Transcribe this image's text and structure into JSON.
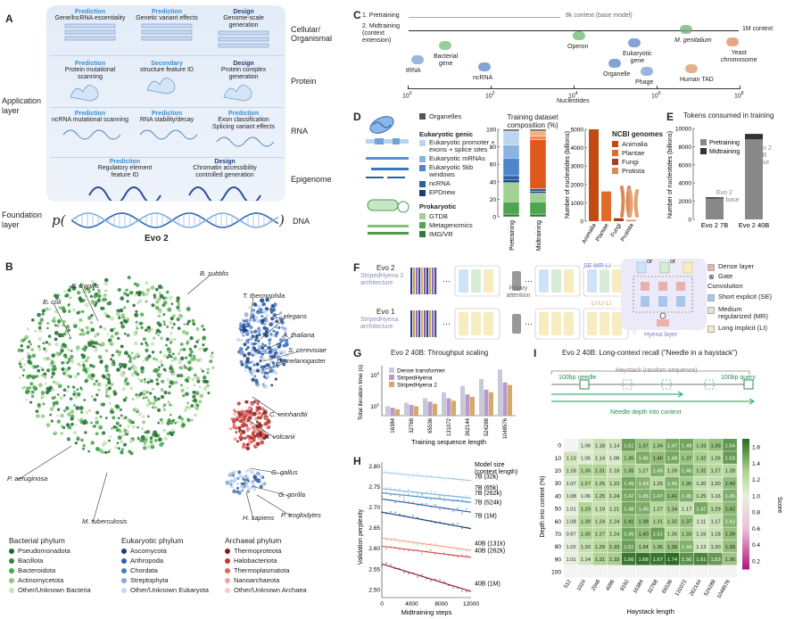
{
  "panelA": {
    "letter": "A",
    "rows": [
      {
        "label": "Cellular/\nOrganismal",
        "cards": [
          {
            "kind": "Prediction",
            "text": "Gene/lncRNA essentiality"
          },
          {
            "kind": "Prediction",
            "text": "Genetic variant effects"
          },
          {
            "kind": "Design",
            "text": "Genome-scale\ngeneration"
          }
        ]
      },
      {
        "label": "Protein",
        "cards": [
          {
            "kind": "Prediction",
            "text": "Protein mutational\nscanning"
          },
          {
            "kind": "Secondary",
            "text": "structure feature ID"
          },
          {
            "kind": "Design",
            "text": "Protein complex\ngeneration"
          }
        ]
      },
      {
        "label": "RNA",
        "cards": [
          {
            "kind": "Prediction",
            "text": "ncRNA mutational scanning"
          },
          {
            "kind": "Prediction",
            "text": "RNA stability/decay"
          },
          {
            "kind": "Prediction",
            "text": "Exon classification\nSplicing variant effects"
          }
        ]
      },
      {
        "label": "Epigenome",
        "cards": [
          {
            "kind": "Prediction",
            "text": "Regulatory element\nfeature ID"
          },
          {
            "kind": "Design",
            "text": "Chromatin accessibility\ncontrolled generation"
          }
        ]
      }
    ],
    "application_layer": "Application\nlayer",
    "foundation_layer": "Foundation\nlayer",
    "p_symbol": "p(",
    "p_close": ")",
    "dna_label": "DNA",
    "model_name": "Evo 2"
  },
  "panelB": {
    "letter": "B",
    "species": [
      "B. subtilis",
      "B. fragilis",
      "E. coli",
      "T. thermophila",
      "C. elegans",
      "A. thaliana",
      "S. cerevisiae",
      "D. melanogaster",
      "C. reinhardtii",
      "H. volcanii",
      "G. gallus",
      "G. gorilla",
      "H. sapiens",
      "P. troglodytes",
      "P. aeruginosa",
      "M. tuberculosis"
    ],
    "legend": [
      {
        "title": "Bacterial phylum",
        "items": [
          {
            "name": "Pseudomonadota",
            "color": "#1e6b2e"
          },
          {
            "name": "Bacillota",
            "color": "#2f8a3c"
          },
          {
            "name": "Bacteroidota",
            "color": "#4aa64f"
          },
          {
            "name": "Actinomycetota",
            "color": "#8cc97c"
          },
          {
            "name": "Other/Unknown Bacteria",
            "color": "#c6e3b9"
          }
        ]
      },
      {
        "title": "Eukaryotic phylum",
        "items": [
          {
            "name": "Ascomycota",
            "color": "#1a3f7a"
          },
          {
            "name": "Arthropoda",
            "color": "#2d5fa8"
          },
          {
            "name": "Chordata",
            "color": "#4a7fc5"
          },
          {
            "name": "Streptophyta",
            "color": "#86a9d9"
          },
          {
            "name": "Other/Unknown Eukaryota",
            "color": "#c7d6ee"
          }
        ]
      },
      {
        "title": "Archaeal phylum",
        "items": [
          {
            "name": "Thermoproteota",
            "color": "#8b1a1a"
          },
          {
            "name": "Halobacteriota",
            "color": "#c0392b"
          },
          {
            "name": "Thermoplasmatota",
            "color": "#e06666"
          },
          {
            "name": "Nanoarchaeota",
            "color": "#efa0a0"
          },
          {
            "name": "Other/Unknown Archaea",
            "color": "#f6cccc"
          }
        ]
      }
    ]
  },
  "panelC": {
    "letter": "C",
    "stage1": "1. Pretraining",
    "stage1_end": "8k context (base model)",
    "stage2": "2. Midtraining\n(context\nextension)",
    "stage2_end": "1M context",
    "xlabel": "Nucleotides",
    "ticks": [
      "10",
      "10",
      "10",
      "10",
      "10"
    ],
    "tick_exp": [
      "0",
      "2",
      "4",
      "6",
      "8"
    ],
    "items": [
      "tRNA",
      "Bacterial\ngene",
      "ncRNA",
      "Operon",
      "Organelle",
      "Eukaryotic\ngene",
      "Phage",
      "M. genitalium",
      "Human TAD",
      "Yeast\nchromosome"
    ]
  },
  "panelD": {
    "letter": "D",
    "legend_head1": "Organelles",
    "legend_head2": "Eukaryotic genic",
    "legend_items_euk": [
      "Eukaryotic promoter +\nexons + splice sites",
      "Eukaryotic mRNAs",
      "Eukaryotic 5kb\nwindows",
      "ncRNA",
      "EPDnew"
    ],
    "legend_head3": "Prokaryotic",
    "legend_items_prok": [
      "GTDB",
      "Metagenomics",
      "IMG/VR"
    ],
    "comp_title": "Training dataset\ncomposition (%)",
    "comp_ylabel": "",
    "comp_ticks": [
      "100",
      "80",
      "60",
      "40",
      "20",
      "0"
    ],
    "comp_cats": [
      "Pretraining",
      "Midtraining"
    ],
    "ncbi_ylabel": "Number of nucleotides (billions)",
    "ncbi_ticks": [
      "5000",
      "4000",
      "3000",
      "2000",
      "1000",
      "0"
    ],
    "ncbi_title": "NCBI genomes",
    "ncbi_legend": [
      "Animalia",
      "Plantae",
      "Fungi",
      "Protista"
    ],
    "ncbi_cats": [
      "Animalia",
      "Plantae",
      "Fungi",
      "Protista"
    ]
  },
  "panelE": {
    "letter": "E",
    "title": "Tokens consumed in training",
    "ylabel": "Number of nucleotides (billions)",
    "ticks": [
      "10000",
      "8000",
      "6000",
      "4000",
      "2000",
      "0"
    ],
    "legend": [
      "Pretraining",
      "Midtraining"
    ],
    "cats": [
      "Evo 2 7B",
      "Evo 2 40B"
    ],
    "ann1": "Evo 2\n7B base",
    "ann2": "Evo 2\n40B\nbase"
  },
  "panelF": {
    "letter": "F",
    "evo2": "Evo 2",
    "evo2_arch": "StripedHyena 2\narchitecture",
    "evo1": "Evo 1",
    "evo1_arch": "StripedHyena\narchitecture",
    "se_mr_li": "SE-MR-LI",
    "li_li_li": "LI-LI-LI",
    "rotary": "Rotary\nattention",
    "hyena_layer": "Hyena layer",
    "or1": "or",
    "or2": "or",
    "legend": {
      "dense": "Dense layer",
      "gate": "Gate",
      "conv": "Convolution",
      "se": "Short explicit (SE)",
      "mr": "Medium\nregularized (MR)",
      "li": "Long implicit (LI)"
    }
  },
  "panelG": {
    "letter": "G",
    "title": "Evo 2 40B: Throughput scaling",
    "ylabel": "Total iteration time (s)",
    "xlabel": "Training sequence length",
    "legend": [
      "Dense transformer",
      "StripedHyena",
      "StripedHyena 2"
    ],
    "ticks_y": [
      "10",
      "10"
    ],
    "ticks_y_exp": [
      "2",
      "1"
    ]
  },
  "panelH": {
    "letter": "H",
    "ylabel": "Validation perplexity",
    "xlabel": "Midtraining steps",
    "ticks_y": [
      "2.80",
      "2.75",
      "2.70",
      "2.65",
      "2.60",
      "2.55",
      "2.50"
    ],
    "ticks_x": [
      "0",
      "4000",
      "8000",
      "12000"
    ],
    "legend_title": "Model size\n(context length)",
    "series": [
      "7B (32k)",
      "7B (65k)",
      "7B (262k)",
      "7B (524k)",
      "7B (1M)",
      "40B (131k)",
      "40B (262k)",
      "40B (1M)"
    ]
  },
  "panelI": {
    "letter": "I",
    "title": "Evo 2 40B: Long-context recall (\"Needle in a haystack\")",
    "haystack": "Haystack (random sequence)",
    "needle": "100bp needle",
    "query": "100bp query",
    "depth": "Needle depth into context",
    "xlabel": "Haystack length",
    "ylabel": "Depth into context (%)",
    "cbar_label": "Score",
    "cbar_ticks": [
      "1.6",
      "1.4",
      "1.2",
      "1.0",
      "0.8",
      "0.6",
      "0.4",
      "0.2"
    ]
  },
  "chart_data": [
    {
      "type": "bar",
      "title": "Training dataset composition (%)",
      "categories": [
        "Pretraining",
        "Midtraining"
      ],
      "ylim": [
        0,
        100
      ],
      "series": [
        {
          "name": "IMG/VR",
          "values": [
            3,
            3
          ]
        },
        {
          "name": "Metagenomics",
          "values": [
            14,
            14
          ]
        },
        {
          "name": "GTDB",
          "values": [
            22,
            10
          ]
        },
        {
          "name": "EPDnew",
          "values": [
            3,
            2
          ]
        },
        {
          "name": "ncRNA",
          "values": [
            5,
            3
          ]
        },
        {
          "name": "Eukaryotic 5kb windows",
          "values": [
            20,
            56
          ]
        },
        {
          "name": "Eukaryotic mRNAs",
          "values": [
            15,
            4
          ]
        },
        {
          "name": "Eukaryotic promoter + exons + splice sites",
          "values": [
            16,
            6
          ]
        },
        {
          "name": "Organelles",
          "values": [
            2,
            2
          ]
        }
      ]
    },
    {
      "type": "bar",
      "title": "NCBI genomes",
      "ylabel": "Number of nucleotides (billions)",
      "categories": [
        "Animalia",
        "Plantae",
        "Fungi",
        "Protista"
      ],
      "values": [
        5050,
        1620,
        160,
        70
      ],
      "ylim": [
        0,
        5000
      ]
    },
    {
      "type": "bar",
      "title": "Tokens consumed in training",
      "ylabel": "Number of nucleotides (billions)",
      "categories": [
        "Evo 2 7B",
        "Evo 2 40B"
      ],
      "ylim": [
        0,
        10000
      ],
      "series": [
        {
          "name": "Pretraining",
          "values": [
            2300,
            8800
          ]
        },
        {
          "name": "Midtraining",
          "values": [
            140,
            600
          ]
        }
      ]
    },
    {
      "type": "bar",
      "title": "Evo 2 40B: Throughput scaling",
      "ylabel": "Total iteration time (s)",
      "xlabel": "Training sequence length",
      "log_y": true,
      "categories": [
        "16384",
        "32768",
        "65536",
        "131072",
        "262144",
        "524288",
        "1048576"
      ],
      "series": [
        {
          "name": "Dense transformer",
          "values": [
            10,
            13,
            18,
            28,
            45,
            75,
            150
          ]
        },
        {
          "name": "StripedHyena",
          "values": [
            9,
            11,
            14,
            18,
            24,
            34,
            58
          ]
        },
        {
          "name": "StripedHyena 2",
          "values": [
            8,
            10,
            12,
            15,
            20,
            28,
            48
          ]
        }
      ]
    },
    {
      "type": "line",
      "ylabel": "Validation perplexity",
      "xlabel": "Midtraining steps",
      "xlim": [
        0,
        12000
      ],
      "ylim": [
        2.48,
        2.81
      ],
      "x": [
        0,
        12000
      ],
      "series": [
        {
          "name": "7B (32k)",
          "values": [
            2.785,
            2.765
          ]
        },
        {
          "name": "7B (65k)",
          "values": [
            2.745,
            2.722
          ]
        },
        {
          "name": "7B (262k)",
          "values": [
            2.735,
            2.712
          ]
        },
        {
          "name": "7B (524k)",
          "values": [
            2.72,
            2.688
          ]
        },
        {
          "name": "7B (1M)",
          "values": [
            2.688,
            2.648
          ]
        },
        {
          "name": "40B (131k)",
          "values": [
            2.625,
            2.595
          ]
        },
        {
          "name": "40B (262k)",
          "values": [
            2.605,
            2.578
          ]
        },
        {
          "name": "40B (1M)",
          "values": [
            2.562,
            2.495
          ]
        }
      ]
    },
    {
      "type": "heatmap",
      "title": "Evo 2 40B: Long-context recall (\"Needle in a haystack\")",
      "xlabel": "Haystack length",
      "ylabel": "Depth into context (%)",
      "x": [
        "512",
        "1024",
        "2048",
        "4096",
        "8192",
        "16384",
        "32768",
        "65536",
        "131072",
        "262144",
        "524288",
        "1048576"
      ],
      "y": [
        "0",
        "10",
        "20",
        "30",
        "40",
        "50",
        "60",
        "70",
        "80",
        "90",
        "100"
      ],
      "vmin": 0.1,
      "vmax": 1.7,
      "values": [
        [
          null,
          1.06,
          1.18,
          1.14,
          1.51,
          1.37,
          1.34,
          1.47,
          1.49,
          1.33,
          1.39,
          1.54
        ],
        [
          1.13,
          1.05,
          1.14,
          1.08,
          1.35,
          1.46,
          1.4,
          1.48,
          1.37,
          1.32,
          1.26,
          1.53
        ],
        [
          1.16,
          1.3,
          1.31,
          1.18,
          1.35,
          1.27,
          1.45,
          1.29,
          1.46,
          1.32,
          1.27,
          1.28
        ],
        [
          1.07,
          1.27,
          1.25,
          1.23,
          1.49,
          1.43,
          1.25,
          1.45,
          1.35,
          1.2,
          1.2,
          1.4
        ],
        [
          1.08,
          1.06,
          1.25,
          1.24,
          1.47,
          1.45,
          1.47,
          1.41,
          1.45,
          1.25,
          1.16,
          1.45
        ],
        [
          1.01,
          1.29,
          1.19,
          1.21,
          1.48,
          1.46,
          1.27,
          1.34,
          1.17,
          1.47,
          1.29,
          1.42
        ],
        [
          1.08,
          1.3,
          1.24,
          1.24,
          1.41,
          1.38,
          1.31,
          1.32,
          1.37,
          1.11,
          1.17,
          1.43
        ],
        [
          0.97,
          1.3,
          1.27,
          1.24,
          1.49,
          1.4,
          1.51,
          1.26,
          1.33,
          1.16,
          1.18,
          1.39
        ],
        [
          1.02,
          1.2,
          1.29,
          1.33,
          1.51,
          1.34,
          1.35,
          1.39,
          1.44,
          1.12,
          1.2,
          1.39
        ],
        [
          1.01,
          1.14,
          1.31,
          1.33,
          1.66,
          1.68,
          1.67,
          1.74,
          1.56,
          1.61,
          1.53,
          1.36
        ],
        [
          null,
          null,
          null,
          null,
          null,
          null,
          null,
          null,
          null,
          null,
          null,
          null
        ]
      ]
    }
  ]
}
